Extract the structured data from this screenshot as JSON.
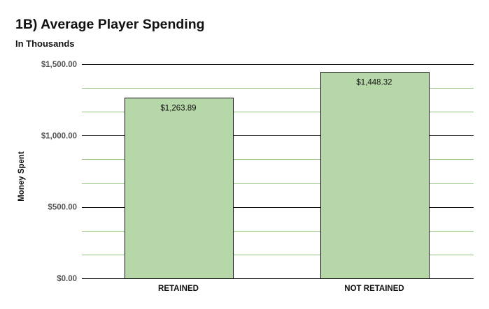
{
  "chart_data": {
    "type": "bar",
    "title": "1B) Average Player Spending",
    "subtitle": "In Thousands",
    "xlabel": "",
    "ylabel": "Money Spent",
    "categories": [
      "RETAINED",
      "NOT RETAINED"
    ],
    "values": [
      1263.89,
      1448.32
    ],
    "data_labels": [
      "$1,263.89",
      "$1,448.32"
    ],
    "ylim": [
      0,
      1500
    ],
    "yticks": [
      {
        "value": 0,
        "label": "$0.00"
      },
      {
        "value": 500,
        "label": "$500.00"
      },
      {
        "value": 1000,
        "label": "$1,000.00"
      },
      {
        "value": 1500,
        "label": "$1,500.00"
      }
    ],
    "minor_gridlines": true,
    "legend": "none",
    "colors": {
      "bar_fill": "#b6d7a8",
      "bar_stroke": "#111111",
      "major_grid": "#111111",
      "minor_grid": "#93c47d"
    }
  }
}
